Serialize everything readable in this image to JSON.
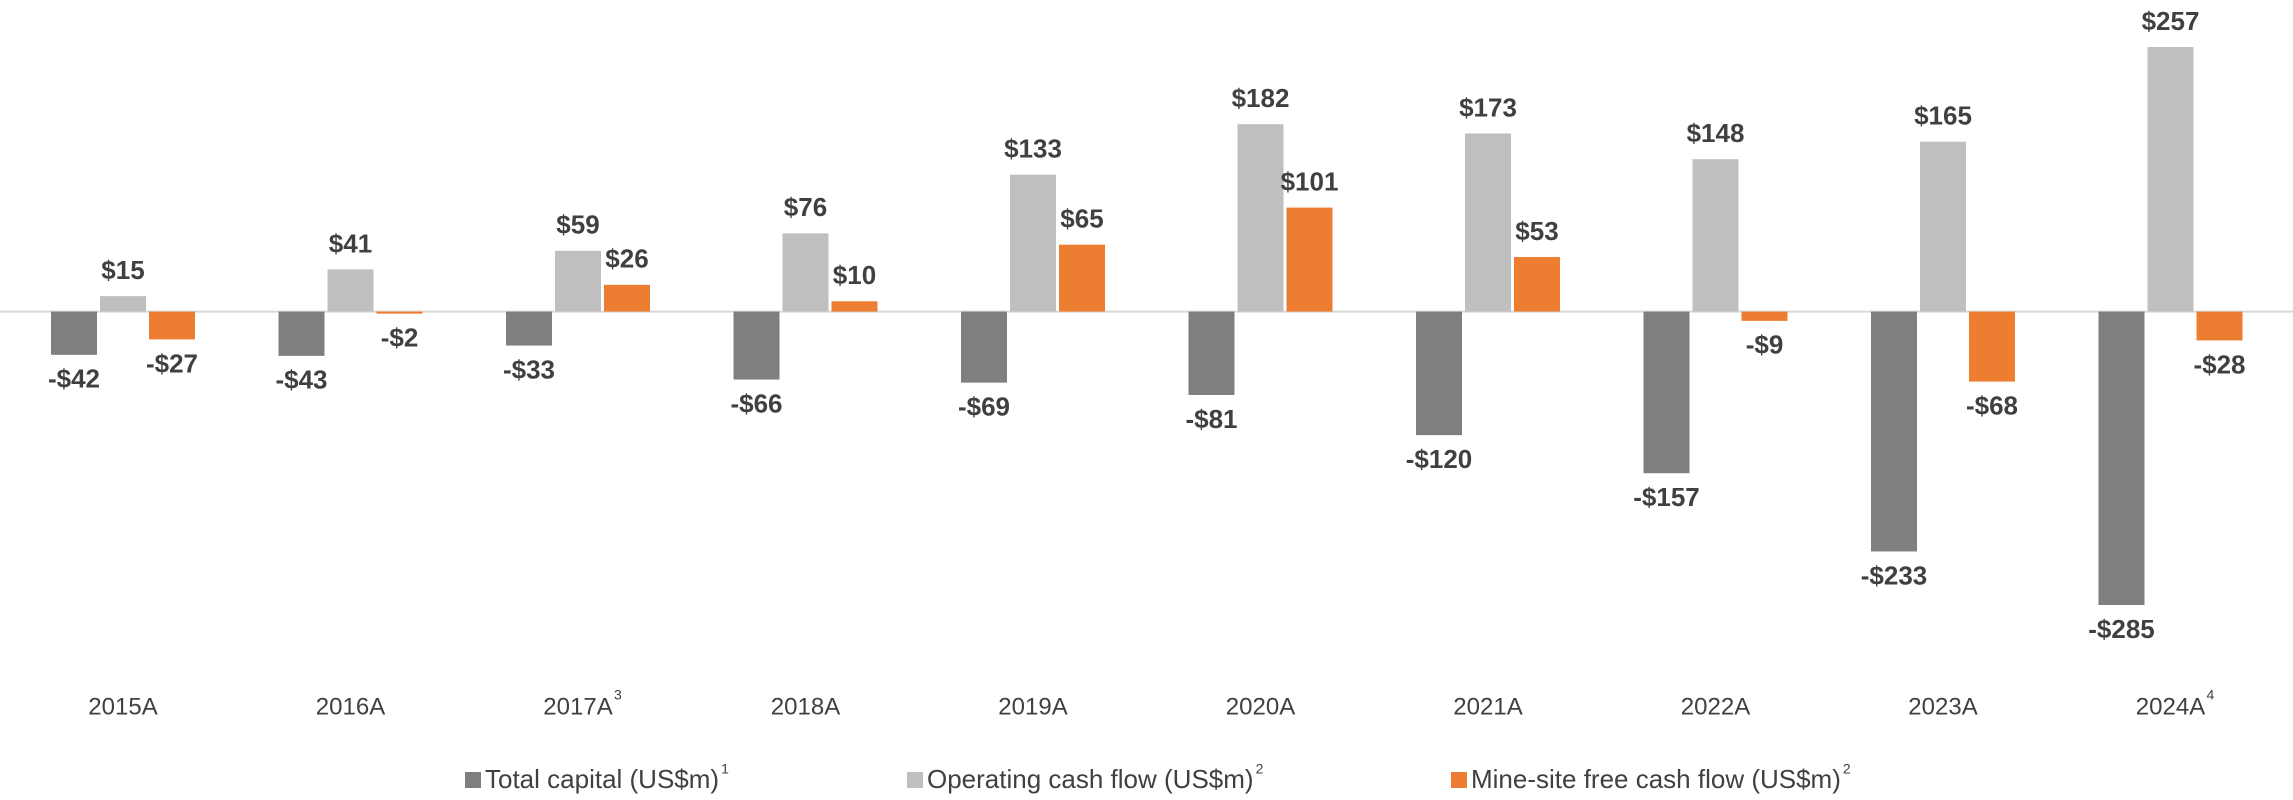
{
  "chart_data": {
    "type": "bar",
    "categories": [
      "2015A",
      "2016A",
      "2017A",
      "2018A",
      "2019A",
      "2020A",
      "2021A",
      "2022A",
      "2023A",
      "2024A"
    ],
    "category_footnotes": [
      null,
      null,
      "3",
      null,
      null,
      null,
      null,
      null,
      null,
      "4"
    ],
    "series": [
      {
        "name": "Total capital (US$m)",
        "footnote": "1",
        "color": "#7f7f7f",
        "values": [
          -42,
          -43,
          -33,
          -66,
          -69,
          -81,
          -120,
          -157,
          -233,
          -285
        ],
        "value_labels": [
          "-$42",
          "-$43",
          "-$33",
          "-$66",
          "-$69",
          "-$81",
          "-$120",
          "-$157",
          "-$233",
          "-$285"
        ]
      },
      {
        "name": "Operating cash flow (US$m)",
        "footnote": "2",
        "color": "#bfbfbf",
        "values": [
          15,
          41,
          59,
          76,
          133,
          182,
          173,
          148,
          165,
          257
        ],
        "value_labels": [
          "$15",
          "$41",
          "$59",
          "$76",
          "$133",
          "$182",
          "$173",
          "$148",
          "$165",
          "$257"
        ]
      },
      {
        "name": "Mine-site free cash flow (US$m)",
        "footnote": "2",
        "color": "#ed7d31",
        "values": [
          -27,
          -2,
          26,
          10,
          65,
          101,
          53,
          -9,
          -68,
          -28
        ],
        "value_labels": [
          "-$27",
          "-$2",
          "$26",
          "$10",
          "$65",
          "$101",
          "$53",
          "-$9",
          "-$68",
          "-$28"
        ]
      }
    ]
  }
}
